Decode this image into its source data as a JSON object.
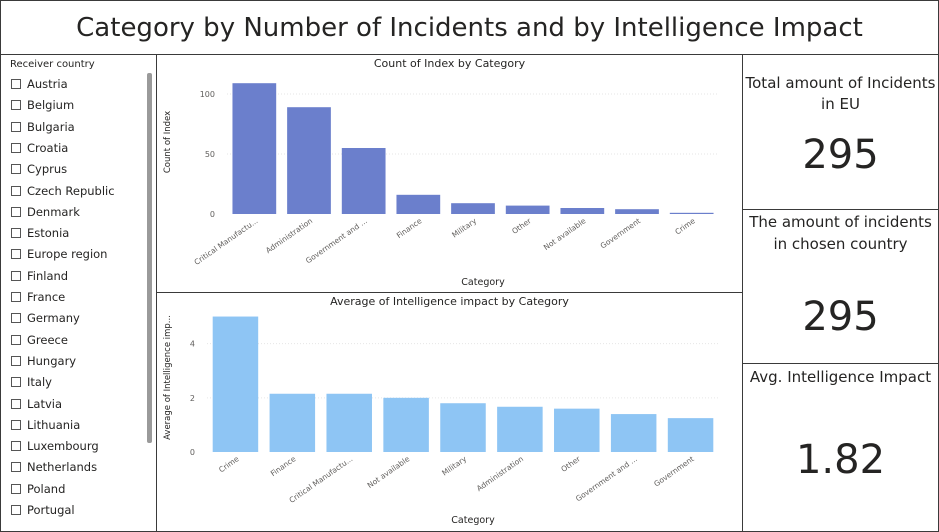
{
  "report_title": "Category by Number of Incidents and by Intelligence Impact",
  "slicer": {
    "header": "Receiver country",
    "items": [
      "Austria",
      "Belgium",
      "Bulgaria",
      "Croatia",
      "Cyprus",
      "Czech Republic",
      "Denmark",
      "Estonia",
      "Europe region",
      "Finland",
      "France",
      "Germany",
      "Greece",
      "Hungary",
      "Italy",
      "Latvia",
      "Lithuania",
      "Luxembourg",
      "Netherlands",
      "Poland",
      "Portugal"
    ]
  },
  "cards": [
    {
      "label_line1": "Total amount of Incidents",
      "label_line2": "in EU",
      "value": "295"
    },
    {
      "label_line1": "The amount of incidents",
      "label_line2": "in chosen country",
      "value": "295"
    },
    {
      "label_line1": "Avg. Intelligence Impact",
      "label_line2": "",
      "value": "1.82"
    }
  ],
  "colors": {
    "bar1": "#6b7fcc",
    "bar2": "#8ec5f4",
    "grid": "#e6e6e6"
  },
  "chart_data": [
    {
      "type": "bar",
      "title": "Count of Index by Category",
      "xlabel": "Category",
      "ylabel": "Count of Index",
      "categories": [
        "Critical Manufactu...",
        "Administration",
        "Government and ...",
        "Finance",
        "Military",
        "Other",
        "Not available",
        "Government",
        "Crime"
      ],
      "values": [
        109,
        89,
        55,
        16,
        9,
        7,
        5,
        4,
        1
      ],
      "ylim": [
        0,
        120
      ],
      "yticks": [
        0,
        50,
        100
      ],
      "grid": true
    },
    {
      "type": "bar",
      "title": "Average of Intelligence impact by Category",
      "xlabel": "Category",
      "ylabel": "Average of Intelligence imp...",
      "categories": [
        "Crime",
        "Finance",
        "Critical Manufactu...",
        "Not available",
        "Military",
        "Administration",
        "Other",
        "Government and ...",
        "Government"
      ],
      "values": [
        5.0,
        2.15,
        2.15,
        2.0,
        1.8,
        1.67,
        1.6,
        1.4,
        1.25
      ],
      "ylim": [
        0,
        5.5
      ],
      "yticks": [
        0,
        2,
        4
      ],
      "grid": true
    }
  ]
}
